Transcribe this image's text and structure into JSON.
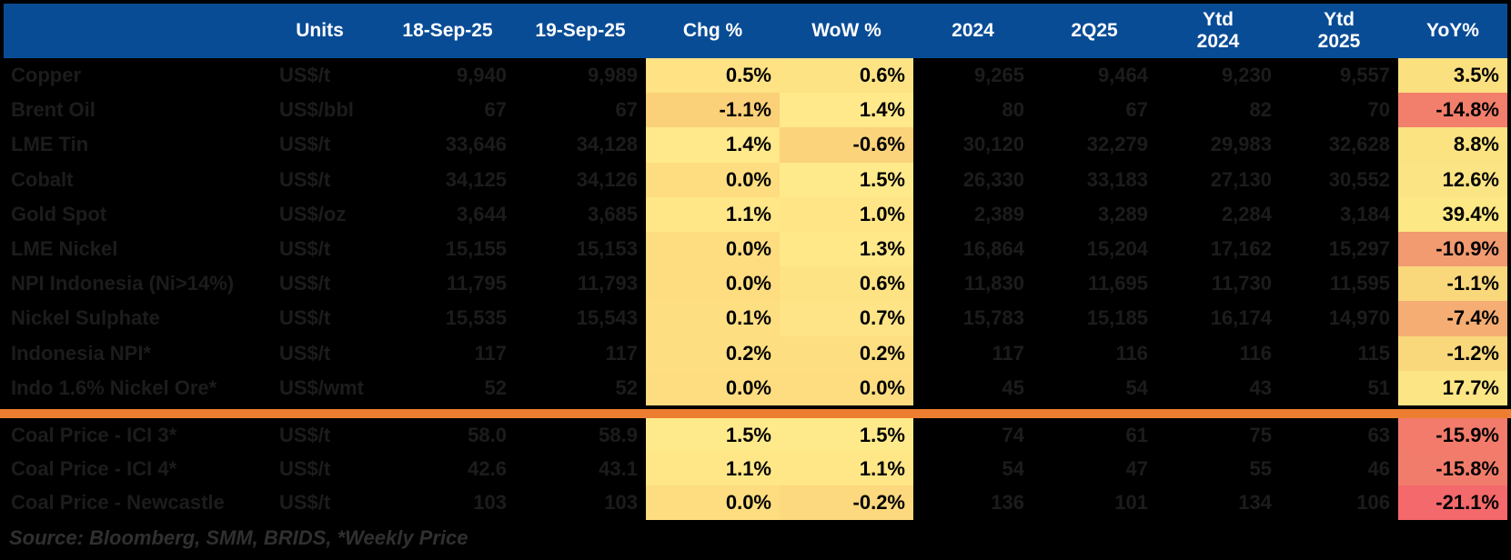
{
  "colors": {
    "header_bg": "#094C96",
    "header_text": "#FFFFFF",
    "body_bg": "#000000",
    "body_text": "#1C1C1C",
    "divider_orange": "#ED7D31",
    "base_yellow": "#FEE284"
  },
  "table": {
    "headers": [
      {
        "l1": "",
        "l2": ""
      },
      {
        "l1": "Units",
        "l2": ""
      },
      {
        "l1": "18-Sep-25",
        "l2": ""
      },
      {
        "l1": "19-Sep-25",
        "l2": ""
      },
      {
        "l1": "Chg %",
        "l2": ""
      },
      {
        "l1": "WoW %",
        "l2": ""
      },
      {
        "l1": "2024",
        "l2": ""
      },
      {
        "l1": "2Q25",
        "l2": ""
      },
      {
        "l1": "Ytd",
        "l2": "2024"
      },
      {
        "l1": "Ytd",
        "l2": "2025"
      },
      {
        "l1": "YoY%",
        "l2": ""
      }
    ],
    "sections": [
      {
        "rows": [
          {
            "label": "Copper",
            "units": "US$/t",
            "v_18sep": "9,940",
            "v_19sep": "9,989",
            "chg": "0.5%",
            "wow": "0.6%",
            "y2024": "9,265",
            "q2_2025": "9,464",
            "ytd_2024": "9,230",
            "ytd_2025": "9,557",
            "yoy": "3.5%",
            "chg_bg": "#FEE284",
            "wow_bg": "#FEE385",
            "yoy_bg": "#FBE07F"
          },
          {
            "label": "Brent Oil",
            "units": "US$/bbl",
            "v_18sep": "67",
            "v_19sep": "67",
            "chg": "-1.1%",
            "wow": "1.4%",
            "y2024": "80",
            "q2_2025": "67",
            "ytd_2024": "82",
            "ytd_2025": "70",
            "yoy": "-14.8%",
            "chg_bg": "#FAD078",
            "wow_bg": "#FFE98A",
            "yoy_bg": "#F27E6C"
          },
          {
            "label": "LME Tin",
            "units": "US$/t",
            "v_18sep": "33,646",
            "v_19sep": "34,128",
            "chg": "1.4%",
            "wow": "-0.6%",
            "y2024": "30,120",
            "q2_2025": "32,279",
            "ytd_2024": "29,983",
            "ytd_2025": "32,628",
            "yoy": "8.8%",
            "chg_bg": "#FFE98A",
            "wow_bg": "#FBD37B",
            "yoy_bg": "#FBE382"
          },
          {
            "label": "Cobalt",
            "units": "US$/t",
            "v_18sep": "34,125",
            "v_19sep": "34,126",
            "chg": "0.0%",
            "wow": "1.5%",
            "y2024": "26,330",
            "q2_2025": "33,183",
            "ytd_2024": "27,130",
            "ytd_2025": "30,552",
            "yoy": "12.6%",
            "chg_bg": "#FDDD80",
            "wow_bg": "#FFEA8B",
            "yoy_bg": "#FBE483"
          },
          {
            "label": "Gold Spot",
            "units": "US$/oz",
            "v_18sep": "3,644",
            "v_19sep": "3,685",
            "chg": "1.1%",
            "wow": "1.0%",
            "y2024": "2,389",
            "q2_2025": "3,289",
            "ytd_2024": "2,284",
            "ytd_2025": "3,184",
            "yoy": "39.4%",
            "chg_bg": "#FFE687",
            "wow_bg": "#FFE586",
            "yoy_bg": "#FCE884"
          },
          {
            "label": "LME Nickel",
            "units": "US$/t",
            "v_18sep": "15,155",
            "v_19sep": "15,153",
            "chg": "0.0%",
            "wow": "1.3%",
            "y2024": "16,864",
            "q2_2025": "15,204",
            "ytd_2024": "17,162",
            "ytd_2025": "15,297",
            "yoy": "-10.9%",
            "chg_bg": "#FDDD80",
            "wow_bg": "#FFE888",
            "yoy_bg": "#F29A70"
          },
          {
            "label": "NPI Indonesia (Ni>14%)",
            "units": "US$/t",
            "v_18sep": "11,795",
            "v_19sep": "11,793",
            "chg": "0.0%",
            "wow": "0.6%",
            "y2024": "11,830",
            "q2_2025": "11,695",
            "ytd_2024": "11,730",
            "ytd_2025": "11,595",
            "yoy": "-1.1%",
            "chg_bg": "#FDDD80",
            "wow_bg": "#FEE385",
            "yoy_bg": "#F9D87C"
          },
          {
            "label": "Nickel Sulphate",
            "units": "US$/t",
            "v_18sep": "15,535",
            "v_19sep": "15,543",
            "chg": "0.1%",
            "wow": "0.7%",
            "y2024": "15,783",
            "q2_2025": "15,185",
            "ytd_2024": "16,174",
            "ytd_2025": "14,970",
            "yoy": "-7.4%",
            "chg_bg": "#FDDE81",
            "wow_bg": "#FEE486",
            "yoy_bg": "#F5AD73"
          },
          {
            "label": "Indonesia NPI*",
            "units": "US$/t",
            "v_18sep": "117",
            "v_19sep": "117",
            "chg": "0.2%",
            "wow": "0.2%",
            "y2024": "117",
            "q2_2025": "116",
            "ytd_2024": "116",
            "ytd_2025": "115",
            "yoy": "-1.2%",
            "chg_bg": "#FDDF82",
            "wow_bg": "#FDDF82",
            "yoy_bg": "#F9D87C"
          },
          {
            "label": "Indo 1.6% Nickel Ore*",
            "units": "US$/wmt",
            "v_18sep": "52",
            "v_19sep": "52",
            "chg": "0.0%",
            "wow": "0.0%",
            "y2024": "45",
            "q2_2025": "54",
            "ytd_2024": "43",
            "ytd_2025": "51",
            "yoy": "17.7%",
            "chg_bg": "#FDDD80",
            "wow_bg": "#FDDD80",
            "yoy_bg": "#FBE584"
          }
        ]
      },
      {
        "rows": [
          {
            "label": "Coal Price - ICI 3*",
            "units": "US$/t",
            "v_18sep": "58.0",
            "v_19sep": "58.9",
            "chg": "1.5%",
            "wow": "1.5%",
            "y2024": "74",
            "q2_2025": "61",
            "ytd_2024": "75",
            "ytd_2025": "63",
            "yoy": "-15.9%",
            "chg_bg": "#FFEA8B",
            "wow_bg": "#FFEA8B",
            "yoy_bg": "#F27B6B"
          },
          {
            "label": "Coal Price - ICI 4*",
            "units": "US$/t",
            "v_18sep": "42.6",
            "v_19sep": "43.1",
            "chg": "1.1%",
            "wow": "1.1%",
            "y2024": "54",
            "q2_2025": "47",
            "ytd_2024": "55",
            "ytd_2025": "46",
            "yoy": "-15.8%",
            "chg_bg": "#FFE687",
            "wow_bg": "#FFE687",
            "yoy_bg": "#F27C6B"
          },
          {
            "label": "Coal Price - Newcastle",
            "units": "US$/t",
            "v_18sep": "103",
            "v_19sep": "103",
            "chg": "0.0%",
            "wow": "-0.2%",
            "y2024": "136",
            "q2_2025": "101",
            "ytd_2024": "134",
            "ytd_2025": "106",
            "yoy": "-21.1%",
            "chg_bg": "#FDDD80",
            "wow_bg": "#FCD87E",
            "yoy_bg": "#F4696B"
          }
        ]
      }
    ],
    "source_note": "Source: Bloomberg, SMM, BRIDS, *Weekly Price"
  }
}
